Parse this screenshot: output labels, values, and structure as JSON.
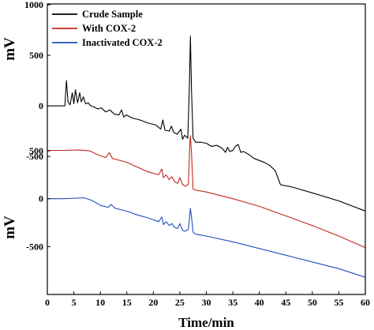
{
  "chart_data": {
    "type": "line",
    "xlabel": "Time/min",
    "x_ticks": [
      "0",
      "5",
      "10",
      "15",
      "20",
      "25",
      "30",
      "35",
      "40",
      "45",
      "50",
      "55",
      "60"
    ],
    "xlim": [
      0,
      60
    ],
    "legend_placement": "top-left",
    "grid": false,
    "panels": [
      {
        "ylabel": "mV",
        "ylim": [
          -850,
          1000
        ],
        "y_ticks": [
          1000,
          500,
          0,
          -500
        ],
        "series": [
          {
            "name": "Crude Sample",
            "color": "#000000",
            "x": [
              0,
              3.3,
              3.6,
              3.9,
              4.3,
              4.7,
              5.0,
              5.3,
              5.7,
              6.1,
              6.4,
              6.8,
              7.2,
              7.7,
              8.2,
              8.8,
              9.5,
              10.2,
              11.0,
              11.8,
              12.6,
              13.5,
              14.0,
              14.4,
              14.9,
              16,
              17.5,
              19,
              20.5,
              21.4,
              21.8,
              22.2,
              23,
              23.4,
              23.8,
              24.5,
              25.2,
              25.5,
              25.9,
              26.5,
              26.8,
              27.0,
              27.2,
              27.5,
              28,
              29,
              30,
              31,
              32,
              33,
              33.6,
              34,
              34.4,
              35,
              35.5,
              36.0,
              36.5,
              37,
              38,
              39,
              40,
              41,
              42,
              43,
              44,
              46,
              50,
              55,
              60
            ],
            "y": [
              0,
              0,
              250,
              40,
              10,
              130,
              20,
              160,
              30,
              130,
              40,
              90,
              20,
              30,
              0,
              -10,
              -30,
              -20,
              -60,
              -40,
              -80,
              -90,
              -40,
              -110,
              -90,
              -120,
              -140,
              -170,
              -190,
              -230,
              -140,
              -240,
              -250,
              -200,
              -260,
              -280,
              -230,
              -330,
              -290,
              -320,
              200,
              690,
              160,
              -320,
              -360,
              -360,
              -370,
              -400,
              -390,
              -420,
              -460,
              -410,
              -450,
              -440,
              -400,
              -380,
              -460,
              -450,
              -480,
              -520,
              -540,
              -560,
              -590,
              -640,
              -780,
              -800,
              -860,
              -940,
              -1040
            ]
          }
        ]
      },
      {
        "ylabel": "mV",
        "ylim": [
          -1000,
          550
        ],
        "y_ticks": [
          500,
          0,
          -500
        ],
        "series": [
          {
            "name": "With COX-2",
            "color": "#c0281e",
            "x": [
              0,
              3,
              6,
              8,
              9.5,
              11,
              11.7,
              12.3,
              13,
              15,
              17,
              19,
              21,
              21.6,
              21.9,
              22.4,
              23,
              23.5,
              24,
              24.6,
              25,
              25.5,
              26,
              26.6,
              26.9,
              27.0,
              27.2,
              27.5,
              28,
              30,
              35,
              40,
              45,
              50,
              55,
              60
            ],
            "y": [
              505,
              505,
              510,
              500,
              460,
              430,
              480,
              420,
              410,
              380,
              330,
              280,
              250,
              310,
              220,
              250,
              200,
              230,
              180,
              160,
              220,
              150,
              130,
              150,
              600,
              660,
              480,
              100,
              90,
              70,
              0,
              -80,
              -180,
              -280,
              -390,
              -510
            ]
          },
          {
            "name": "Inactivated COX-2",
            "color": "#1f4fbf",
            "x": [
              0,
              3,
              7,
              8.5,
              10,
              11.5,
              12,
              12.8,
              15,
              17,
              19,
              21,
              21.6,
              21.9,
              22.4,
              23,
              23.5,
              24,
              24.6,
              25,
              25.5,
              26,
              26.6,
              26.9,
              27.0,
              27.2,
              27.5,
              28,
              30,
              35,
              40,
              45,
              50,
              55,
              60
            ],
            "y": [
              0,
              0,
              10,
              -20,
              -70,
              -90,
              -60,
              -100,
              -130,
              -170,
              -200,
              -240,
              -190,
              -270,
              -240,
              -280,
              -260,
              -300,
              -310,
              -260,
              -330,
              -340,
              -320,
              -150,
              -100,
              -190,
              -350,
              -370,
              -390,
              -450,
              -520,
              -590,
              -660,
              -730,
              -820
            ]
          }
        ]
      }
    ]
  }
}
